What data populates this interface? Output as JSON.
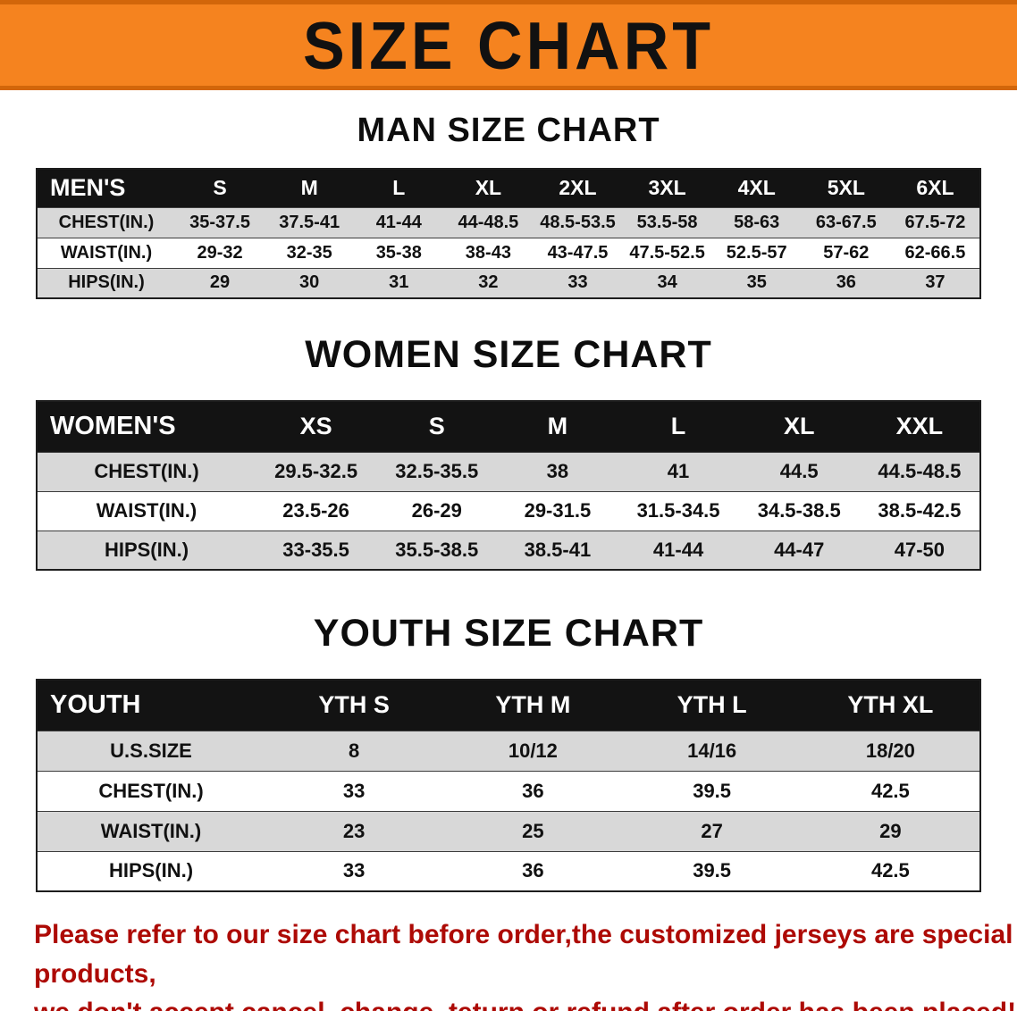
{
  "banner": {
    "title": "SIZE CHART",
    "bg_color": "#f5831f"
  },
  "chart_data": [
    {
      "type": "table",
      "heading": "MAN SIZE CHART",
      "corner_label": "MEN'S",
      "columns": [
        "S",
        "M",
        "L",
        "XL",
        "2XL",
        "3XL",
        "4XL",
        "5XL",
        "6XL"
      ],
      "rows": [
        {
          "label": "CHEST(IN.)",
          "values": [
            "35-37.5",
            "37.5-41",
            "41-44",
            "44-48.5",
            "48.5-53.5",
            "53.5-58",
            "58-63",
            "63-67.5",
            "67.5-72"
          ]
        },
        {
          "label": "WAIST(IN.)",
          "values": [
            "29-32",
            "32-35",
            "35-38",
            "38-43",
            "43-47.5",
            "47.5-52.5",
            "52.5-57",
            "57-62",
            "62-66.5"
          ]
        },
        {
          "label": "HIPS(IN.)",
          "values": [
            "29",
            "30",
            "31",
            "32",
            "33",
            "34",
            "35",
            "36",
            "37"
          ]
        }
      ]
    },
    {
      "type": "table",
      "heading": "WOMEN SIZE CHART",
      "corner_label": "WOMEN'S",
      "columns": [
        "XS",
        "S",
        "M",
        "L",
        "XL",
        "XXL"
      ],
      "rows": [
        {
          "label": "CHEST(IN.)",
          "values": [
            "29.5-32.5",
            "32.5-35.5",
            "38",
            "41",
            "44.5",
            "44.5-48.5"
          ]
        },
        {
          "label": "WAIST(IN.)",
          "values": [
            "23.5-26",
            "26-29",
            "29-31.5",
            "31.5-34.5",
            "34.5-38.5",
            "38.5-42.5"
          ]
        },
        {
          "label": "HIPS(IN.)",
          "values": [
            "33-35.5",
            "35.5-38.5",
            "38.5-41",
            "41-44",
            "44-47",
            "47-50"
          ]
        }
      ]
    },
    {
      "type": "table",
      "heading": "YOUTH SIZE CHART",
      "corner_label": "YOUTH",
      "columns": [
        "YTH S",
        "YTH M",
        "YTH L",
        "YTH XL"
      ],
      "rows": [
        {
          "label": "U.S.SIZE",
          "values": [
            "8",
            "10/12",
            "14/16",
            "18/20"
          ]
        },
        {
          "label": "CHEST(IN.)",
          "values": [
            "33",
            "36",
            "39.5",
            "42.5"
          ]
        },
        {
          "label": "WAIST(IN.)",
          "values": [
            "23",
            "25",
            "27",
            "29"
          ]
        },
        {
          "label": "HIPS(IN.)",
          "values": [
            "33",
            "36",
            "39.5",
            "42.5"
          ]
        }
      ]
    }
  ],
  "footer": {
    "line1": "Please refer to our size chart before order,the customized jerseys are special products,",
    "line2": "we don't accept cancel, change, teturn or refund after order has been placed!"
  }
}
